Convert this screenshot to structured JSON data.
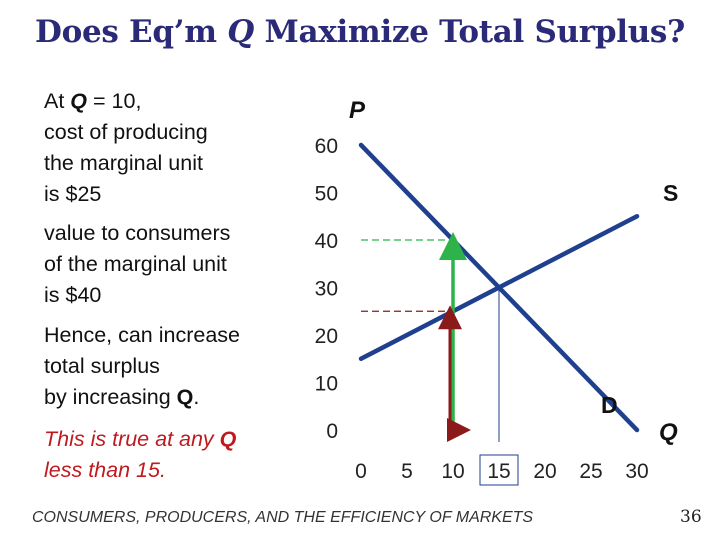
{
  "title": {
    "text": "Does Eq’m ",
    "q": "Q",
    "rest": " Maximize Total Surplus?"
  },
  "text_block": {
    "p1": {
      "pre": "At ",
      "q": "Q",
      "post": " = 10,",
      "l2": "cost of producing",
      "l3": "the marginal unit",
      "l4": "is $25"
    },
    "p2": {
      "l1": "value to consumers",
      "l2": "of the marginal unit",
      "l3": "is $40"
    },
    "p3": {
      "l1": "Hence, can increase",
      "l2": "total surplus",
      "l3pre": "by increasing ",
      "q": "Q",
      "l3post": "."
    },
    "p4": {
      "l1pre": "This is true at any ",
      "q": "Q",
      "l2": "less than 15."
    }
  },
  "footer": "CONSUMERS, PRODUCERS, AND THE EFFICIENCY OF MARKETS",
  "page_number": "36",
  "colors": {
    "title": "#2a2a78",
    "curves": "#1f3f8f",
    "value_arrow": "#2db34a",
    "cost_arrow": "#8b1a1a",
    "emphasis_text": "#c0191f"
  },
  "chart_data": {
    "type": "line",
    "ylabel": "P",
    "xlabel": "Q",
    "x_ticks": [
      0,
      5,
      10,
      15,
      20,
      25,
      30
    ],
    "y_ticks": [
      0,
      10,
      20,
      30,
      40,
      50,
      60
    ],
    "highlighted_x_tick": 15,
    "xlim": [
      0,
      30
    ],
    "ylim": [
      0,
      60
    ],
    "series": [
      {
        "name": "D",
        "points": [
          [
            0,
            60
          ],
          [
            30,
            0
          ]
        ]
      },
      {
        "name": "S",
        "points": [
          [
            0,
            15
          ],
          [
            30,
            45
          ]
        ]
      }
    ],
    "equilibrium": {
      "q": 15,
      "p": 30
    },
    "marginal_unit": {
      "q": 10,
      "cost": 25,
      "value": 40
    }
  }
}
